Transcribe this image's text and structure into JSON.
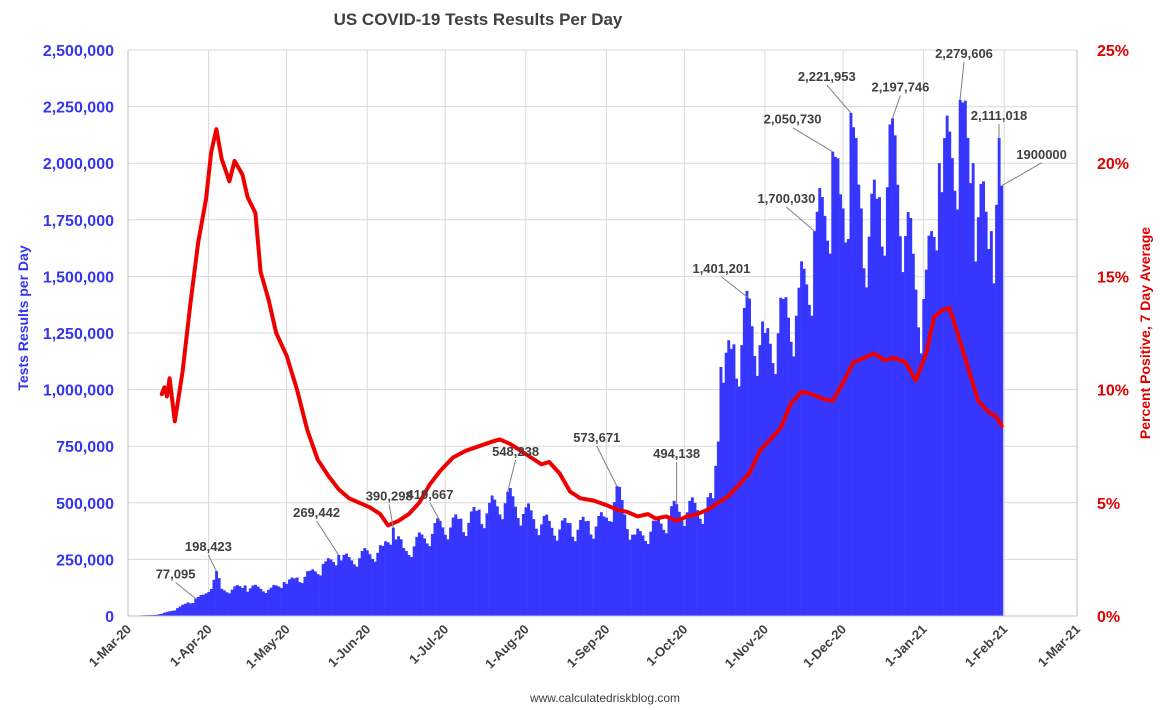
{
  "chart_data": {
    "type": "bar+line",
    "title": "US COVID-19 Tests Results Per Day",
    "source": "www.calculatedriskblog.com",
    "y_left": {
      "label": "Tests Results per Day",
      "min": 0,
      "max": 2500000,
      "ticks": [
        "0",
        "250,000",
        "500,000",
        "750,000",
        "1,000,000",
        "1,250,000",
        "1,500,000",
        "1,750,000",
        "2,000,000",
        "2,250,000",
        "2,500,000"
      ],
      "color": "#3535f0"
    },
    "y_right": {
      "label": "Percent Positive, 7 Day Average",
      "min": 0,
      "max": 25,
      "ticks": [
        "0%",
        "5%",
        "10%",
        "15%",
        "20%",
        "25%"
      ],
      "color": "#e00000"
    },
    "x_axis": {
      "start": "2020-03-01",
      "end": "2021-03-01",
      "ticks": [
        "1-Mar-20",
        "1-Apr-20",
        "1-May-20",
        "1-Jun-20",
        "1-Jul-20",
        "1-Aug-20",
        "1-Sep-20",
        "1-Oct-20",
        "1-Nov-20",
        "1-Dec-20",
        "1-Jan-21",
        "1-Feb-21",
        "1-Mar-21"
      ],
      "tick_dates": [
        "2020-03-01",
        "2020-04-01",
        "2020-05-01",
        "2020-06-01",
        "2020-07-01",
        "2020-08-01",
        "2020-09-01",
        "2020-10-01",
        "2020-11-01",
        "2020-12-01",
        "2021-01-01",
        "2021-02-01",
        "2021-03-01"
      ]
    },
    "grid": true,
    "series": [
      {
        "name": "Tests Results per Day",
        "kind": "bar",
        "color": "#3636ff",
        "anchors": [
          [
            "2020-03-02",
            2000
          ],
          [
            "2020-03-10",
            4000
          ],
          [
            "2020-03-14",
            10000
          ],
          [
            "2020-03-20",
            35000
          ],
          [
            "2020-03-24",
            60000
          ],
          [
            "2020-03-27",
            77095
          ],
          [
            "2020-03-31",
            100000
          ],
          [
            "2020-04-04",
            198423
          ],
          [
            "2020-04-06",
            120000
          ],
          [
            "2020-04-15",
            135000
          ],
          [
            "2020-04-25",
            125000
          ],
          [
            "2020-04-30",
            150000
          ],
          [
            "2020-05-05",
            170000
          ],
          [
            "2020-05-10",
            200000
          ],
          [
            "2020-05-15",
            230000
          ],
          [
            "2020-05-21",
            269442
          ],
          [
            "2020-05-25",
            260000
          ],
          [
            "2020-06-01",
            290000
          ],
          [
            "2020-06-07",
            310000
          ],
          [
            "2020-06-11",
            390298
          ],
          [
            "2020-06-15",
            300000
          ],
          [
            "2020-06-22",
            360000
          ],
          [
            "2020-06-29",
            419667
          ],
          [
            "2020-07-07",
            430000
          ],
          [
            "2020-07-14",
            470000
          ],
          [
            "2020-07-18",
            500000
          ],
          [
            "2020-07-25",
            548238
          ],
          [
            "2020-08-01",
            480000
          ],
          [
            "2020-08-10",
            420000
          ],
          [
            "2020-08-18",
            410000
          ],
          [
            "2020-08-25",
            420000
          ],
          [
            "2020-08-31",
            440000
          ],
          [
            "2020-09-05",
            573671
          ],
          [
            "2020-09-12",
            360000
          ],
          [
            "2020-09-20",
            420000
          ],
          [
            "2020-09-28",
            494138
          ],
          [
            "2020-10-05",
            500000
          ],
          [
            "2020-10-12",
            520000
          ],
          [
            "2020-10-15",
            1100000
          ],
          [
            "2020-10-20",
            1200000
          ],
          [
            "2020-10-26",
            1401201
          ],
          [
            "2020-11-01",
            1250000
          ],
          [
            "2020-11-08",
            1400000
          ],
          [
            "2020-11-14",
            1450000
          ],
          [
            "2020-11-20",
            1700030
          ],
          [
            "2020-11-27",
            2050730
          ],
          [
            "2020-12-01",
            1800000
          ],
          [
            "2020-12-04",
            2221953
          ],
          [
            "2020-12-08",
            1800000
          ],
          [
            "2020-12-15",
            1850000
          ],
          [
            "2020-12-20",
            2197746
          ],
          [
            "2020-12-28",
            1600000
          ],
          [
            "2021-01-01",
            1400000
          ],
          [
            "2021-01-07",
            2000000
          ],
          [
            "2021-01-15",
            2279606
          ],
          [
            "2021-01-20",
            2000000
          ],
          [
            "2021-01-27",
            1700000
          ],
          [
            "2021-01-30",
            2111018
          ],
          [
            "2021-01-31",
            1900000
          ]
        ]
      },
      {
        "name": "Percent Positive, 7 Day Average",
        "kind": "line",
        "color": "#ee0000",
        "points": [
          [
            "2020-03-14",
            9.8
          ],
          [
            "2020-03-15",
            10.1
          ],
          [
            "2020-03-16",
            9.7
          ],
          [
            "2020-03-17",
            10.5
          ],
          [
            "2020-03-19",
            8.6
          ],
          [
            "2020-03-22",
            10.8
          ],
          [
            "2020-03-25",
            13.8
          ],
          [
            "2020-03-28",
            16.5
          ],
          [
            "2020-03-31",
            18.4
          ],
          [
            "2020-04-02",
            20.5
          ],
          [
            "2020-04-04",
            21.5
          ],
          [
            "2020-04-06",
            20.2
          ],
          [
            "2020-04-09",
            19.2
          ],
          [
            "2020-04-11",
            20.1
          ],
          [
            "2020-04-14",
            19.5
          ],
          [
            "2020-04-16",
            18.5
          ],
          [
            "2020-04-19",
            17.8
          ],
          [
            "2020-04-21",
            15.2
          ],
          [
            "2020-04-24",
            14.0
          ],
          [
            "2020-04-27",
            12.5
          ],
          [
            "2020-04-29",
            12.0
          ],
          [
            "2020-05-01",
            11.5
          ],
          [
            "2020-05-05",
            10.0
          ],
          [
            "2020-05-09",
            8.2
          ],
          [
            "2020-05-13",
            6.9
          ],
          [
            "2020-05-17",
            6.2
          ],
          [
            "2020-05-21",
            5.6
          ],
          [
            "2020-05-25",
            5.2
          ],
          [
            "2020-05-29",
            5.0
          ],
          [
            "2020-06-02",
            4.8
          ],
          [
            "2020-06-06",
            4.5
          ],
          [
            "2020-06-09",
            4.0
          ],
          [
            "2020-06-13",
            4.2
          ],
          [
            "2020-06-17",
            4.5
          ],
          [
            "2020-06-21",
            5.0
          ],
          [
            "2020-06-25",
            5.8
          ],
          [
            "2020-06-29",
            6.4
          ],
          [
            "2020-07-04",
            7.0
          ],
          [
            "2020-07-09",
            7.3
          ],
          [
            "2020-07-14",
            7.5
          ],
          [
            "2020-07-19",
            7.7
          ],
          [
            "2020-07-22",
            7.8
          ],
          [
            "2020-07-26",
            7.6
          ],
          [
            "2020-07-30",
            7.3
          ],
          [
            "2020-08-03",
            7.0
          ],
          [
            "2020-08-07",
            6.7
          ],
          [
            "2020-08-10",
            6.8
          ],
          [
            "2020-08-14",
            6.3
          ],
          [
            "2020-08-18",
            5.5
          ],
          [
            "2020-08-22",
            5.2
          ],
          [
            "2020-08-27",
            5.1
          ],
          [
            "2020-09-01",
            4.9
          ],
          [
            "2020-09-05",
            4.7
          ],
          [
            "2020-09-09",
            4.6
          ],
          [
            "2020-09-13",
            4.4
          ],
          [
            "2020-09-17",
            4.5
          ],
          [
            "2020-09-20",
            4.3
          ],
          [
            "2020-09-24",
            4.4
          ],
          [
            "2020-09-28",
            4.2
          ],
          [
            "2020-10-02",
            4.4
          ],
          [
            "2020-10-06",
            4.5
          ],
          [
            "2020-10-10",
            4.7
          ],
          [
            "2020-10-14",
            5.0
          ],
          [
            "2020-10-18",
            5.3
          ],
          [
            "2020-10-22",
            5.8
          ],
          [
            "2020-10-26",
            6.3
          ],
          [
            "2020-10-30",
            7.3
          ],
          [
            "2020-11-03",
            7.8
          ],
          [
            "2020-11-07",
            8.3
          ],
          [
            "2020-11-11",
            9.4
          ],
          [
            "2020-11-15",
            9.9
          ],
          [
            "2020-11-19",
            9.8
          ],
          [
            "2020-11-23",
            9.6
          ],
          [
            "2020-11-27",
            9.5
          ],
          [
            "2020-12-01",
            10.3
          ],
          [
            "2020-12-05",
            11.2
          ],
          [
            "2020-12-09",
            11.4
          ],
          [
            "2020-12-13",
            11.6
          ],
          [
            "2020-12-17",
            11.3
          ],
          [
            "2020-12-21",
            11.4
          ],
          [
            "2020-12-25",
            11.2
          ],
          [
            "2020-12-29",
            10.4
          ],
          [
            "2021-01-02",
            11.6
          ],
          [
            "2021-01-05",
            13.2
          ],
          [
            "2021-01-08",
            13.5
          ],
          [
            "2021-01-11",
            13.6
          ],
          [
            "2021-01-14",
            12.5
          ],
          [
            "2021-01-18",
            11.0
          ],
          [
            "2021-01-22",
            9.5
          ],
          [
            "2021-01-26",
            9.0
          ],
          [
            "2021-01-29",
            8.8
          ],
          [
            "2021-01-31",
            8.4
          ]
        ]
      }
    ],
    "annotations": [
      {
        "text": "77,095",
        "date": "2020-03-27",
        "value": 77095
      },
      {
        "text": "198,423",
        "date": "2020-04-04",
        "value": 198423
      },
      {
        "text": "269,442",
        "date": "2020-05-21",
        "value": 269442
      },
      {
        "text": "390,298",
        "date": "2020-06-11",
        "value": 390298
      },
      {
        "text": "419,667",
        "date": "2020-06-29",
        "value": 419667
      },
      {
        "text": "548,238",
        "date": "2020-07-25",
        "value": 548238
      },
      {
        "text": "573,671",
        "date": "2020-09-05",
        "value": 573671
      },
      {
        "text": "494,138",
        "date": "2020-09-28",
        "value": 494138
      },
      {
        "text": "1,401,201",
        "date": "2020-10-26",
        "value": 1401201
      },
      {
        "text": "1,700,030",
        "date": "2020-11-20",
        "value": 1700030
      },
      {
        "text": "2,050,730",
        "date": "2020-11-27",
        "value": 2050730
      },
      {
        "text": "2,221,953",
        "date": "2020-12-04",
        "value": 2221953
      },
      {
        "text": "2,197,746",
        "date": "2020-12-20",
        "value": 2197746
      },
      {
        "text": "2,279,606",
        "date": "2021-01-15",
        "value": 2279606
      },
      {
        "text": "2,111,018",
        "date": "2021-01-30",
        "value": 2111018
      },
      {
        "text": "1900000",
        "date": "2021-01-31",
        "value": 1900000
      }
    ]
  }
}
